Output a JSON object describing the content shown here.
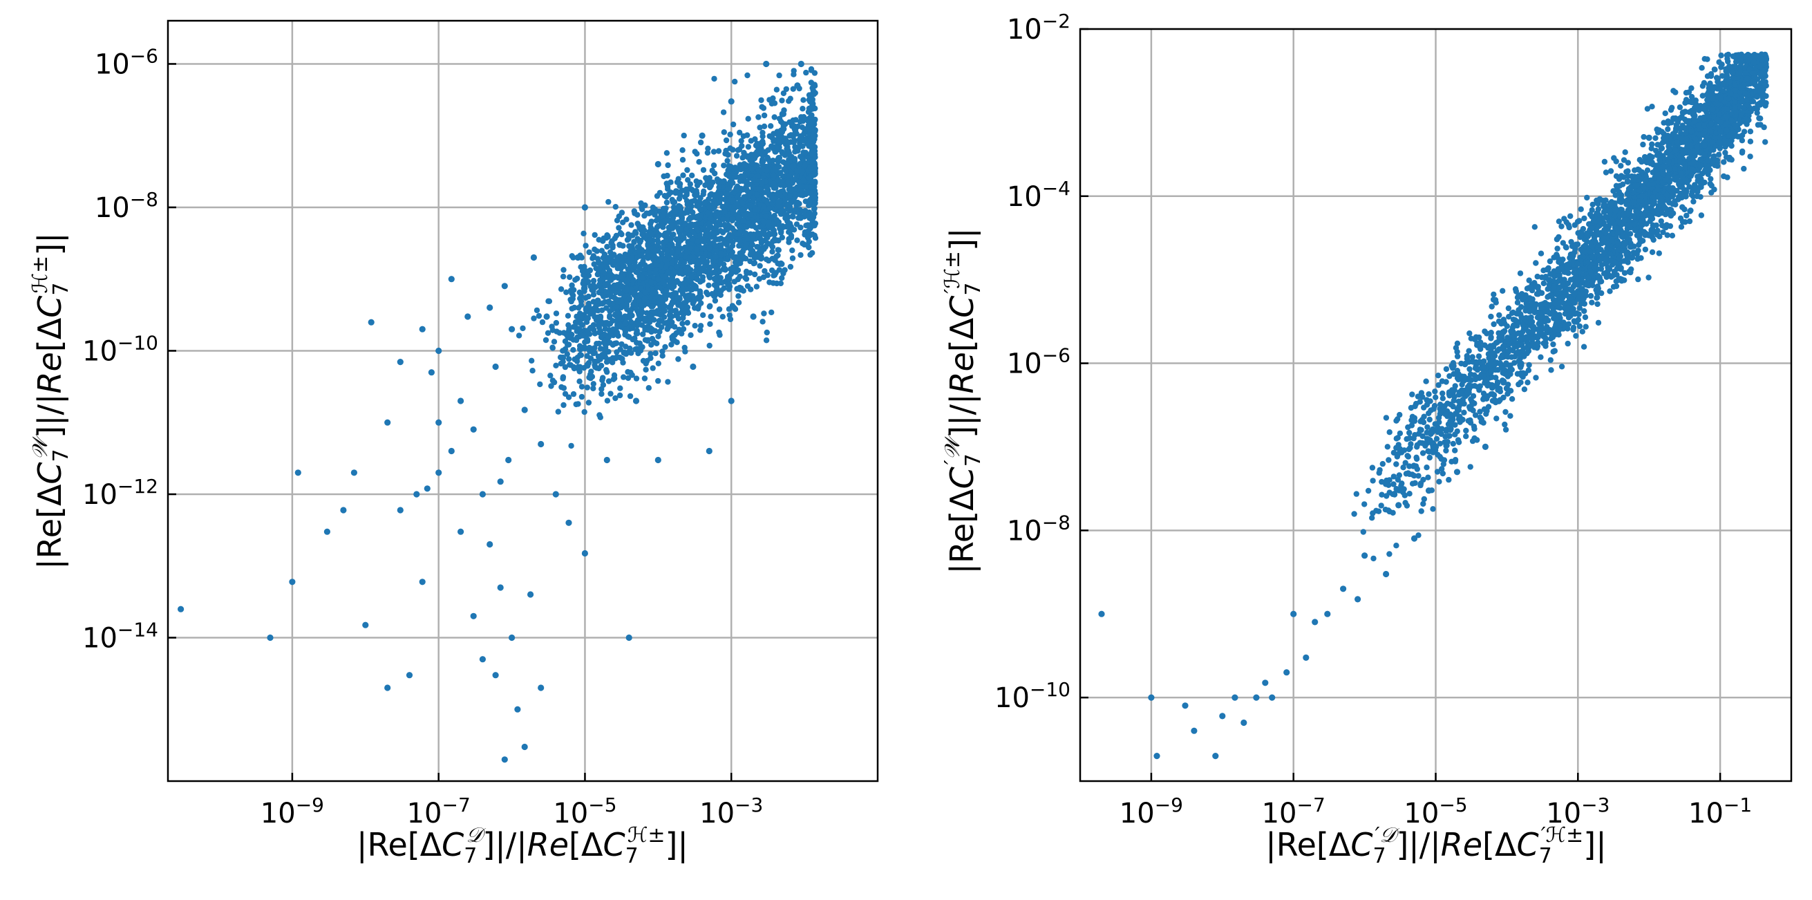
{
  "colors": {
    "points": "#1f77b4",
    "grid": "#b0b0b0",
    "frame": "#000000"
  },
  "chart_data": [
    {
      "type": "scatter",
      "title": "",
      "xscale": "log",
      "yscale": "log",
      "grid": true,
      "xlim": [
        2e-11,
        0.1
      ],
      "ylim": [
        1e-16,
        4e-06
      ],
      "xticks": [
        1e-09,
        1e-07,
        1e-05,
        0.001
      ],
      "xtick_labels": [
        "10^-9",
        "10^-7",
        "10^-5",
        "10^-3"
      ],
      "yticks": [
        1e-14,
        1e-12,
        1e-10,
        1e-08,
        1e-06
      ],
      "ytick_labels": [
        "10^-14",
        "10^-12",
        "10^-10",
        "10^-8",
        "10^-6"
      ],
      "xlabel": "|Re[ΔC7^D]|/|Re[ΔC7^H±]|",
      "ylabel": "|Re[ΔC7^W]|/|Re[ΔC7^H±]|",
      "series": [
        {
          "points": [
            [
              3e-11,
              2.5e-14
            ],
            [
              5e-10,
              1e-14
            ],
            [
              1e-09,
              6e-14
            ],
            [
              1.2e-09,
              2e-12
            ],
            [
              3e-09,
              3e-13
            ],
            [
              5e-09,
              6e-13
            ],
            [
              7e-09,
              2e-12
            ],
            [
              1e-08,
              1.5e-14
            ],
            [
              1.2e-08,
              2.5e-10
            ],
            [
              2e-08,
              1e-11
            ],
            [
              2e-08,
              2e-15
            ],
            [
              3e-08,
              7e-11
            ],
            [
              3e-08,
              6e-13
            ],
            [
              4e-08,
              3e-15
            ],
            [
              5e-08,
              1e-12
            ],
            [
              6e-08,
              6e-14
            ],
            [
              6e-08,
              2e-10
            ],
            [
              7e-08,
              1.2e-12
            ],
            [
              8e-08,
              5e-11
            ],
            [
              1e-07,
              1e-10
            ],
            [
              1e-07,
              1e-11
            ],
            [
              1e-07,
              2e-12
            ],
            [
              1.5e-07,
              1e-09
            ],
            [
              1.5e-07,
              4e-12
            ],
            [
              2e-07,
              3e-13
            ],
            [
              2e-07,
              2e-11
            ],
            [
              2.5e-07,
              3e-10
            ],
            [
              3e-07,
              2e-14
            ],
            [
              3e-07,
              8e-12
            ],
            [
              4e-07,
              5e-15
            ],
            [
              4e-07,
              1e-12
            ],
            [
              5e-07,
              4e-10
            ],
            [
              5e-07,
              2e-13
            ],
            [
              6e-07,
              3e-15
            ],
            [
              6e-07,
              6e-11
            ],
            [
              7e-07,
              5e-14
            ],
            [
              7e-07,
              1.5e-12
            ],
            [
              8e-07,
              2e-16
            ],
            [
              8e-07,
              8e-10
            ],
            [
              9e-07,
              3e-12
            ],
            [
              1e-06,
              1e-14
            ],
            [
              1e-06,
              2e-10
            ],
            [
              1.2e-06,
              1e-15
            ],
            [
              1.5e-06,
              3e-16
            ],
            [
              1.5e-06,
              1.5e-11
            ],
            [
              1.8e-06,
              4e-14
            ],
            [
              2e-06,
              2e-09
            ],
            [
              2.5e-06,
              2e-15
            ],
            [
              2.5e-06,
              5e-12
            ],
            [
              3e-06,
              3e-10
            ],
            [
              4e-06,
              1e-12
            ],
            [
              5e-06,
              8e-11
            ],
            [
              6e-06,
              4e-13
            ],
            [
              8e-06,
              2e-09
            ],
            [
              1e-05,
              1.5e-13
            ],
            [
              1e-05,
              1e-08
            ],
            [
              1.5e-05,
              5e-10
            ],
            [
              2e-05,
              3e-12
            ],
            [
              3e-05,
              3e-09
            ],
            [
              4e-05,
              1e-14
            ],
            [
              5e-05,
              2e-11
            ],
            [
              6e-05,
              1e-08
            ],
            [
              8e-05,
              3e-10
            ],
            [
              0.0001,
              4e-08
            ],
            [
              0.0001,
              3e-12
            ],
            [
              0.0002,
              5e-09
            ],
            [
              0.0003,
              6e-11
            ],
            [
              0.0004,
              1e-07
            ],
            [
              0.0005,
              4e-12
            ],
            [
              0.0006,
              1e-09
            ],
            [
              0.001,
              2e-11
            ],
            [
              0.001,
              3e-07
            ],
            [
              0.0015,
              4e-08
            ],
            [
              0.002,
              3e-10
            ],
            [
              0.003,
              1e-06
            ],
            [
              0.004,
              6e-08
            ],
            [
              0.005,
              2e-07
            ],
            [
              0.006,
              8e-08
            ],
            [
              0.008,
              5e-07
            ],
            [
              0.009,
              1e-06
            ]
          ]
        }
      ]
    },
    {
      "type": "scatter",
      "title": "",
      "xscale": "log",
      "yscale": "log",
      "grid": true,
      "xlim": [
        1e-10,
        1.0
      ],
      "ylim": [
        1e-11,
        0.01
      ],
      "xticks": [
        1e-09,
        1e-07,
        1e-05,
        0.001,
        0.1
      ],
      "xtick_labels": [
        "10^-9",
        "10^-7",
        "10^-5",
        "10^-3",
        "10^-1"
      ],
      "yticks": [
        1e-10,
        1e-08,
        1e-06,
        0.0001,
        0.01
      ],
      "ytick_labels": [
        "10^-10",
        "10^-8",
        "10^-6",
        "10^-4",
        "10^-2"
      ],
      "xlabel": "|Re[ΔC'7^D]|/|Re[ΔC'7^H±]|",
      "ylabel": "|Re[ΔC'7^W]|/|Re[ΔC'7^H±]|",
      "series": [
        {
          "points": [
            [
              2e-10,
              1e-09
            ],
            [
              1e-09,
              1e-10
            ],
            [
              1.2e-09,
              2e-11
            ],
            [
              3e-09,
              8e-11
            ],
            [
              4e-09,
              4e-11
            ],
            [
              8e-09,
              2e-11
            ],
            [
              1e-08,
              6e-11
            ],
            [
              1.5e-08,
              1e-10
            ],
            [
              2e-08,
              5e-11
            ],
            [
              3e-08,
              1e-10
            ],
            [
              4e-08,
              1.5e-10
            ],
            [
              5e-08,
              1e-10
            ],
            [
              8e-08,
              2e-10
            ],
            [
              1e-07,
              1e-09
            ],
            [
              1.5e-07,
              3e-10
            ],
            [
              2e-07,
              8e-10
            ],
            [
              3e-07,
              1e-09
            ],
            [
              5e-07,
              2e-09
            ],
            [
              8e-07,
              1.5e-09
            ],
            [
              1e-06,
              5e-09
            ],
            [
              2e-06,
              3e-09
            ],
            [
              3e-06,
              2e-08
            ],
            [
              5e-06,
              8e-09
            ],
            [
              8e-06,
              3e-08
            ],
            [
              1e-05,
              1e-07
            ],
            [
              2e-05,
              5e-08
            ],
            [
              3e-05,
              3e-07
            ],
            [
              5e-05,
              1e-07
            ],
            [
              8e-05,
              1e-06
            ],
            [
              0.0001,
              5e-07
            ],
            [
              0.0002,
              2e-06
            ],
            [
              0.0003,
              5e-06
            ],
            [
              0.0005,
              3e-06
            ],
            [
              0.0008,
              2e-05
            ],
            [
              0.001,
              1e-05
            ],
            [
              0.002,
              5e-05
            ],
            [
              0.003,
              3e-05
            ],
            [
              0.005,
              0.00015
            ],
            [
              0.008,
              0.0001
            ],
            [
              0.01,
              0.0005
            ],
            [
              0.02,
              0.0003
            ],
            [
              0.03,
              0.001
            ],
            [
              0.05,
              0.0007
            ],
            [
              0.08,
              0.002
            ],
            [
              0.1,
              0.0015
            ],
            [
              0.15,
              0.003
            ],
            [
              0.2,
              0.002
            ],
            [
              0.3,
              0.004
            ],
            [
              0.4,
              0.003
            ]
          ]
        }
      ]
    }
  ]
}
